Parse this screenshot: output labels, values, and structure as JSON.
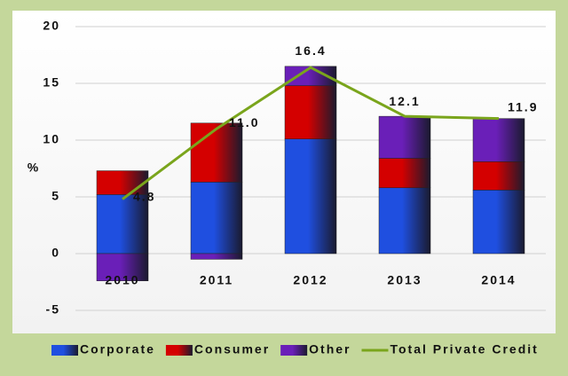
{
  "chart_data": {
    "type": "bar",
    "stacked": true,
    "y_label": "%",
    "categories": [
      "2010",
      "2011",
      "2012",
      "2013",
      "2014"
    ],
    "series": [
      {
        "name": "Corporate",
        "color": "#1f4fe0",
        "values": [
          5.2,
          6.3,
          10.1,
          5.8,
          5.6
        ]
      },
      {
        "name": "Consumer",
        "color": "#d40000",
        "values": [
          2.1,
          5.2,
          4.7,
          2.6,
          2.5
        ]
      },
      {
        "name": "Other",
        "color": "#6a1fb8",
        "values": [
          -2.4,
          -0.5,
          1.7,
          3.7,
          3.8
        ]
      },
      {
        "name": "Total Private Credit",
        "type": "line",
        "color": "#7aa51c",
        "values": [
          4.8,
          11.0,
          16.4,
          12.1,
          11.9
        ],
        "value_labels": [
          "4.8",
          "11.0",
          "16.4",
          "12.1",
          "11.9"
        ]
      }
    ],
    "ylim": [
      -5,
      20
    ],
    "yticks": [
      -5,
      0,
      5,
      10,
      15,
      20
    ],
    "grid": true,
    "legend": "bottom"
  }
}
